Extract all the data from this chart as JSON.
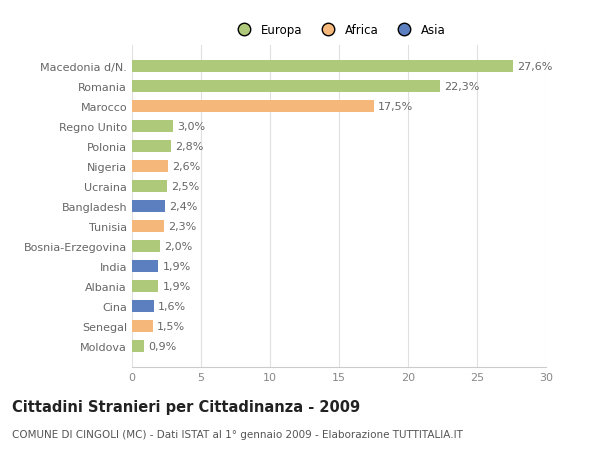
{
  "categories": [
    "Macedonia d/N.",
    "Romania",
    "Marocco",
    "Regno Unito",
    "Polonia",
    "Nigeria",
    "Ucraina",
    "Bangladesh",
    "Tunisia",
    "Bosnia-Erzegovina",
    "India",
    "Albania",
    "Cina",
    "Senegal",
    "Moldova"
  ],
  "values": [
    27.6,
    22.3,
    17.5,
    3.0,
    2.8,
    2.6,
    2.5,
    2.4,
    2.3,
    2.0,
    1.9,
    1.9,
    1.6,
    1.5,
    0.9
  ],
  "labels": [
    "27,6%",
    "22,3%",
    "17,5%",
    "3,0%",
    "2,8%",
    "2,6%",
    "2,5%",
    "2,4%",
    "2,3%",
    "2,0%",
    "1,9%",
    "1,9%",
    "1,6%",
    "1,5%",
    "0,9%"
  ],
  "colors": [
    "#aec97a",
    "#aec97a",
    "#f5b87a",
    "#aec97a",
    "#aec97a",
    "#f5b87a",
    "#aec97a",
    "#5b7fbf",
    "#f5b87a",
    "#aec97a",
    "#5b7fbf",
    "#aec97a",
    "#5b7fbf",
    "#f5b87a",
    "#aec97a"
  ],
  "legend_labels": [
    "Europa",
    "Africa",
    "Asia"
  ],
  "legend_colors": [
    "#aec97a",
    "#f5b87a",
    "#5b7fbf"
  ],
  "title": "Cittadini Stranieri per Cittadinanza - 2009",
  "subtitle": "COMUNE DI CINGOLI (MC) - Dati ISTAT al 1° gennaio 2009 - Elaborazione TUTTITALIA.IT",
  "xlim": [
    0,
    30
  ],
  "xticks": [
    0,
    5,
    10,
    15,
    20,
    25,
    30
  ],
  "background_color": "#ffffff",
  "plot_bg_color": "#ffffff",
  "grid_color": "#e0e0e0",
  "bar_height": 0.6,
  "label_fontsize": 8.0,
  "ytick_fontsize": 8.0,
  "xtick_fontsize": 8.0,
  "title_fontsize": 10.5,
  "subtitle_fontsize": 7.5
}
